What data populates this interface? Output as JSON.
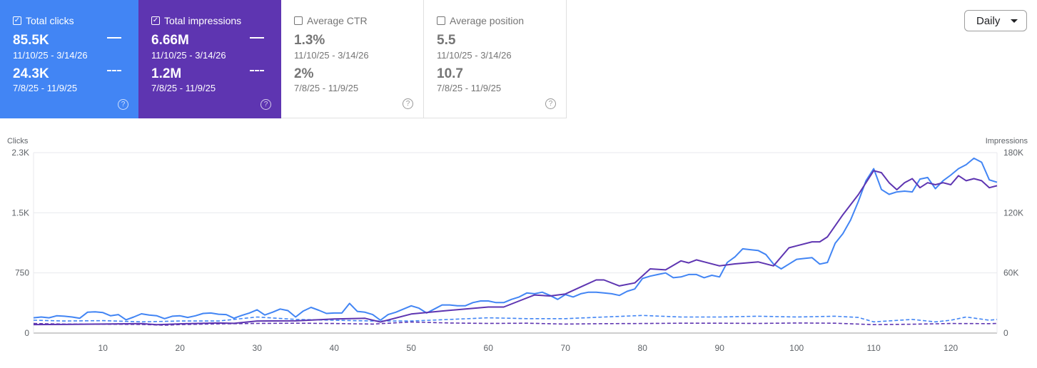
{
  "metrics": [
    {
      "label": "Total clicks",
      "checked": true,
      "current": "85.5K",
      "current_range": "11/10/25 - 3/14/26",
      "previous": "24.3K",
      "previous_range": "7/8/25 - 11/9/25"
    },
    {
      "label": "Total impressions",
      "checked": true,
      "current": "6.66M",
      "current_range": "11/10/25 - 3/14/26",
      "previous": "1.2M",
      "previous_range": "7/8/25 - 11/9/25"
    },
    {
      "label": "Average CTR",
      "checked": false,
      "current": "1.3%",
      "current_range": "11/10/25 - 3/14/26",
      "previous": "2%",
      "previous_range": "7/8/25 - 11/9/25"
    },
    {
      "label": "Average position",
      "checked": false,
      "current": "5.5",
      "current_range": "11/10/25 - 3/14/26",
      "previous": "10.7",
      "previous_range": "7/8/25 - 11/9/25"
    }
  ],
  "checkmark": "✓",
  "help_glyph": "?",
  "interval_select": {
    "value": "Daily"
  },
  "colors": {
    "clicks": "#4285f4",
    "impressions": "#5e35b1",
    "grid": "#e8eaed"
  },
  "chart_data": {
    "type": "line",
    "left_axis": {
      "label": "Clicks",
      "ticks": [
        "0",
        "750",
        "1.5K",
        "2.3K"
      ],
      "range": [
        0,
        2250
      ]
    },
    "right_axis": {
      "label": "Impressions",
      "ticks": [
        "0",
        "60K",
        "120K",
        "180K"
      ],
      "range": [
        0,
        180000
      ]
    },
    "x_ticks": [
      "10",
      "20",
      "30",
      "40",
      "50",
      "60",
      "70",
      "80",
      "90",
      "100",
      "110",
      "120"
    ],
    "x_range": [
      1,
      125
    ],
    "series": [
      {
        "axis": "left",
        "style": "solid",
        "color": "#4285f4",
        "points": [
          [
            1,
            190
          ],
          [
            2,
            200
          ],
          [
            3,
            190
          ],
          [
            4,
            215
          ],
          [
            5,
            210
          ],
          [
            6,
            200
          ],
          [
            7,
            185
          ],
          [
            8,
            260
          ],
          [
            9,
            265
          ],
          [
            10,
            255
          ],
          [
            11,
            215
          ],
          [
            12,
            230
          ],
          [
            13,
            165
          ],
          [
            14,
            200
          ],
          [
            15,
            240
          ],
          [
            16,
            225
          ],
          [
            17,
            215
          ],
          [
            18,
            180
          ],
          [
            19,
            210
          ],
          [
            20,
            215
          ],
          [
            21,
            195
          ],
          [
            22,
            215
          ],
          [
            23,
            245
          ],
          [
            24,
            250
          ],
          [
            25,
            235
          ],
          [
            26,
            230
          ],
          [
            27,
            185
          ],
          [
            28,
            220
          ],
          [
            29,
            250
          ],
          [
            30,
            290
          ],
          [
            31,
            225
          ],
          [
            32,
            260
          ],
          [
            33,
            300
          ],
          [
            34,
            280
          ],
          [
            35,
            200
          ],
          [
            36,
            275
          ],
          [
            37,
            320
          ],
          [
            38,
            285
          ],
          [
            39,
            245
          ],
          [
            40,
            250
          ],
          [
            41,
            250
          ],
          [
            42,
            370
          ],
          [
            43,
            270
          ],
          [
            44,
            260
          ],
          [
            45,
            230
          ],
          [
            46,
            160
          ],
          [
            47,
            230
          ],
          [
            48,
            260
          ],
          [
            49,
            300
          ],
          [
            50,
            340
          ],
          [
            51,
            310
          ],
          [
            52,
            250
          ],
          [
            53,
            300
          ],
          [
            54,
            350
          ],
          [
            55,
            350
          ],
          [
            56,
            340
          ],
          [
            57,
            340
          ],
          [
            58,
            380
          ],
          [
            59,
            400
          ],
          [
            60,
            400
          ],
          [
            61,
            380
          ],
          [
            62,
            380
          ],
          [
            63,
            420
          ],
          [
            64,
            450
          ],
          [
            65,
            500
          ],
          [
            66,
            490
          ],
          [
            67,
            510
          ],
          [
            68,
            470
          ],
          [
            69,
            420
          ],
          [
            70,
            480
          ],
          [
            71,
            450
          ],
          [
            72,
            490
          ],
          [
            73,
            510
          ],
          [
            74,
            510
          ],
          [
            75,
            500
          ],
          [
            76,
            490
          ],
          [
            77,
            470
          ],
          [
            78,
            520
          ],
          [
            79,
            550
          ],
          [
            80,
            680
          ],
          [
            81,
            710
          ],
          [
            82,
            730
          ],
          [
            83,
            750
          ],
          [
            84,
            690
          ],
          [
            85,
            700
          ],
          [
            86,
            730
          ],
          [
            87,
            730
          ],
          [
            88,
            690
          ],
          [
            89,
            720
          ],
          [
            90,
            700
          ],
          [
            91,
            880
          ],
          [
            92,
            950
          ],
          [
            93,
            1050
          ],
          [
            94,
            1040
          ],
          [
            95,
            1030
          ],
          [
            96,
            980
          ],
          [
            97,
            860
          ],
          [
            98,
            800
          ],
          [
            99,
            860
          ],
          [
            100,
            920
          ],
          [
            101,
            930
          ],
          [
            102,
            940
          ],
          [
            103,
            860
          ],
          [
            104,
            880
          ],
          [
            105,
            1120
          ],
          [
            106,
            1240
          ],
          [
            107,
            1410
          ],
          [
            108,
            1640
          ],
          [
            109,
            1900
          ],
          [
            110,
            2050
          ],
          [
            111,
            1790
          ],
          [
            112,
            1730
          ],
          [
            113,
            1760
          ],
          [
            114,
            1770
          ],
          [
            115,
            1760
          ],
          [
            116,
            1920
          ],
          [
            117,
            1940
          ],
          [
            118,
            1800
          ],
          [
            119,
            1900
          ],
          [
            120,
            1970
          ],
          [
            121,
            2050
          ],
          [
            122,
            2100
          ],
          [
            123,
            2180
          ],
          [
            124,
            2130
          ],
          [
            125,
            1910
          ],
          [
            126,
            1880
          ]
        ]
      },
      {
        "axis": "right",
        "style": "solid",
        "color": "#5e35b1",
        "points": [
          [
            1,
            8500
          ],
          [
            5,
            8600
          ],
          [
            10,
            9000
          ],
          [
            15,
            9400
          ],
          [
            17,
            8400
          ],
          [
            20,
            9200
          ],
          [
            25,
            10000
          ],
          [
            27,
            9700
          ],
          [
            30,
            12000
          ],
          [
            35,
            12200
          ],
          [
            40,
            14000
          ],
          [
            44,
            14700
          ],
          [
            46,
            11000
          ],
          [
            50,
            19000
          ],
          [
            54,
            22000
          ],
          [
            60,
            26000
          ],
          [
            62,
            26000
          ],
          [
            64,
            32000
          ],
          [
            66,
            38000
          ],
          [
            68,
            37000
          ],
          [
            70,
            39000
          ],
          [
            72,
            46000
          ],
          [
            74,
            53000
          ],
          [
            75,
            53000
          ],
          [
            77,
            47000
          ],
          [
            79,
            50000
          ],
          [
            81,
            64000
          ],
          [
            83,
            63000
          ],
          [
            85,
            72000
          ],
          [
            86,
            70000
          ],
          [
            87,
            73000
          ],
          [
            88,
            71000
          ],
          [
            90,
            67000
          ],
          [
            92,
            69000
          ],
          [
            95,
            71000
          ],
          [
            97,
            67000
          ],
          [
            99,
            85000
          ],
          [
            100,
            87000
          ],
          [
            102,
            91000
          ],
          [
            103,
            91000
          ],
          [
            104,
            96000
          ],
          [
            106,
            118000
          ],
          [
            108,
            138000
          ],
          [
            110,
            162000
          ],
          [
            111,
            160000
          ],
          [
            112,
            150000
          ],
          [
            113,
            143000
          ],
          [
            114,
            150000
          ],
          [
            115,
            154000
          ],
          [
            116,
            145000
          ],
          [
            117,
            150000
          ],
          [
            118,
            148000
          ],
          [
            119,
            150000
          ],
          [
            120,
            148000
          ],
          [
            121,
            157000
          ],
          [
            122,
            152000
          ],
          [
            123,
            154000
          ],
          [
            124,
            152000
          ],
          [
            125,
            145000
          ],
          [
            126,
            147000
          ]
        ]
      },
      {
        "axis": "left",
        "style": "dashed",
        "color": "#4285f4",
        "points": [
          [
            1,
            160
          ],
          [
            5,
            150
          ],
          [
            10,
            155
          ],
          [
            15,
            140
          ],
          [
            20,
            150
          ],
          [
            25,
            150
          ],
          [
            30,
            200
          ],
          [
            35,
            170
          ],
          [
            40,
            160
          ],
          [
            45,
            150
          ],
          [
            50,
            150
          ],
          [
            55,
            170
          ],
          [
            60,
            190
          ],
          [
            65,
            180
          ],
          [
            70,
            180
          ],
          [
            75,
            200
          ],
          [
            80,
            220
          ],
          [
            85,
            200
          ],
          [
            90,
            200
          ],
          [
            95,
            210
          ],
          [
            100,
            200
          ],
          [
            105,
            210
          ],
          [
            108,
            195
          ],
          [
            110,
            140
          ],
          [
            115,
            170
          ],
          [
            118,
            140
          ],
          [
            120,
            160
          ],
          [
            122,
            200
          ],
          [
            125,
            160
          ],
          [
            126,
            170
          ]
        ]
      },
      {
        "axis": "right",
        "style": "dashed",
        "color": "#5e35b1",
        "points": [
          [
            1,
            9500
          ],
          [
            5,
            9000
          ],
          [
            10,
            8800
          ],
          [
            15,
            8600
          ],
          [
            18,
            7800
          ],
          [
            20,
            8500
          ],
          [
            25,
            9200
          ],
          [
            30,
            9600
          ],
          [
            35,
            9800
          ],
          [
            40,
            9500
          ],
          [
            45,
            9000
          ],
          [
            50,
            11000
          ],
          [
            55,
            10000
          ],
          [
            60,
            9600
          ],
          [
            65,
            9800
          ],
          [
            70,
            9000
          ],
          [
            75,
            9400
          ],
          [
            80,
            9500
          ],
          [
            85,
            9800
          ],
          [
            90,
            9800
          ],
          [
            95,
            9600
          ],
          [
            100,
            10000
          ],
          [
            105,
            9800
          ],
          [
            110,
            8400
          ],
          [
            115,
            8800
          ],
          [
            120,
            9500
          ],
          [
            125,
            9400
          ],
          [
            126,
            9600
          ]
        ]
      }
    ]
  }
}
